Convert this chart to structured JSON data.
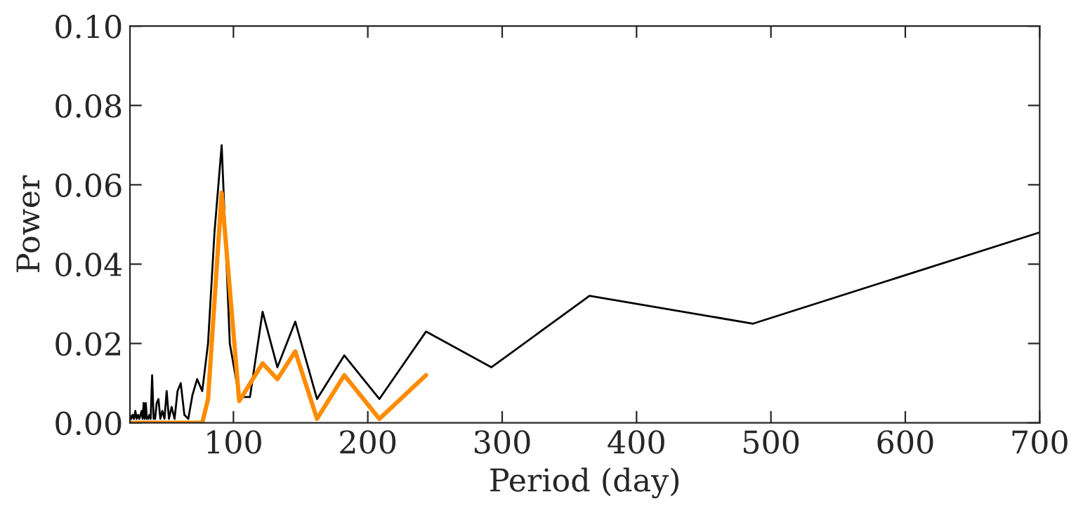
{
  "chart_data": {
    "type": "line",
    "xlabel": "Period (day)",
    "ylabel": "Power",
    "xlim": [
      23,
      700
    ],
    "ylim": [
      0,
      0.1
    ],
    "xticks": [
      100,
      200,
      300,
      400,
      500,
      600,
      700
    ],
    "yticks": [
      {
        "value": 0,
        "label": "0.00"
      },
      {
        "value": 0.02,
        "label": "0.02"
      },
      {
        "value": 0.04,
        "label": "0.04"
      },
      {
        "value": 0.06,
        "label": "0.06"
      },
      {
        "value": 0.08,
        "label": "0.08"
      },
      {
        "value": 0.1,
        "label": "0.10"
      }
    ],
    "grid": false,
    "legend": false,
    "series": [
      {
        "color": "#000000",
        "x": [
          23,
          24,
          25,
          26,
          27,
          28,
          29,
          30,
          31.7,
          32.4,
          33.2,
          34,
          34.8,
          35.6,
          36.5,
          37.4,
          38.4,
          39.5,
          40.6,
          41.7,
          42.9,
          44.2,
          45.6,
          47.1,
          48.7,
          50.3,
          52,
          54,
          56.2,
          58.4,
          60.8,
          63.5,
          66.4,
          69.5,
          73,
          76.8,
          81.1,
          85.9,
          91.25,
          97.3,
          104.3,
          112.3,
          121.7,
          132.7,
          146,
          162.2,
          182.5,
          208.6,
          243.3,
          292,
          365,
          486.7,
          700
        ],
        "values": [
          0.002,
          0.001,
          0.002,
          0.001,
          0.003,
          0.001,
          0.002,
          0.001,
          0.003,
          0.001,
          0.005,
          0.001,
          0.005,
          0.001,
          0.001,
          0.002,
          0.001,
          0.012,
          0.001,
          0.001,
          0.005,
          0.006,
          0.001,
          0.003,
          0.001,
          0.008,
          0.001,
          0.004,
          0.001,
          0.008,
          0.01,
          0.002,
          0.001,
          0.007,
          0.011,
          0.008,
          0.02,
          0.048,
          0.07,
          0.02,
          0.0065,
          0.0065,
          0.028,
          0.014,
          0.0255,
          0.006,
          0.017,
          0.006,
          0.023,
          0.014,
          0.032,
          0.025,
          0.048
        ]
      },
      {
        "color": "#ff8c00",
        "x": [
          23,
          73,
          76.8,
          81.1,
          91.25,
          104.3,
          121.7,
          132.7,
          146,
          162.2,
          182.5,
          208.6,
          243.3
        ],
        "values": [
          0,
          0,
          0,
          0.006,
          0.058,
          0.0055,
          0.015,
          0.011,
          0.018,
          0.001,
          0.012,
          0.001,
          0.012
        ]
      }
    ]
  }
}
